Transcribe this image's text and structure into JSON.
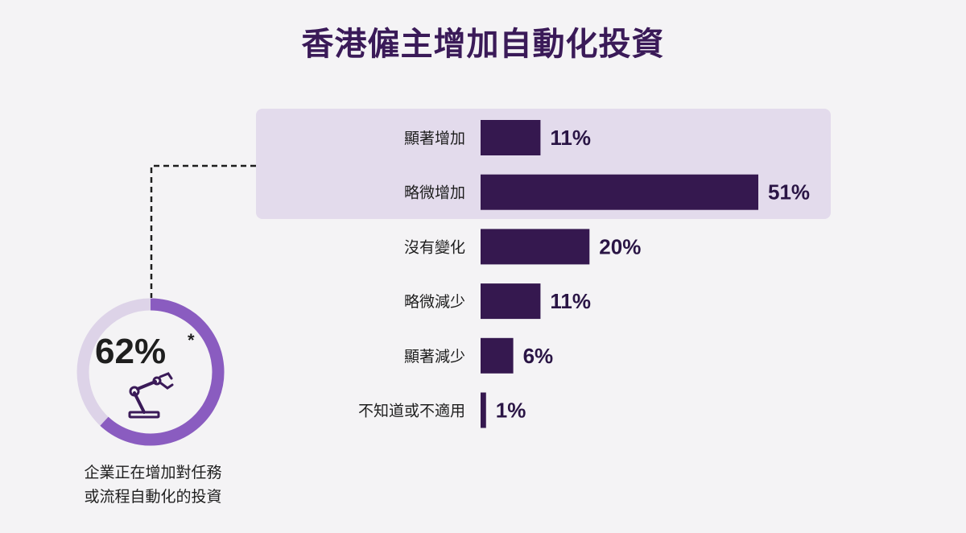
{
  "title": "香港僱主增加自動化投資",
  "colors": {
    "bar": "#35184f",
    "highlight": "#e3dbec",
    "ring_track": "#ddd3e8",
    "ring_fill": "#8a5cc0",
    "title": "#3a1a58"
  },
  "chart_data": {
    "type": "bar",
    "orientation": "horizontal",
    "categories": [
      "顯著增加",
      "略微增加",
      "沒有變化",
      "略微減少",
      "顯著減少",
      "不知道或不適用"
    ],
    "values": [
      11,
      51,
      20,
      11,
      6,
      1
    ],
    "value_labels": [
      "11%",
      "51%",
      "20%",
      "11%",
      "6%",
      "1%"
    ],
    "unit": "%",
    "highlighted_categories": [
      "顯著增加",
      "略微增加"
    ],
    "xlim": [
      0,
      51
    ],
    "grid": false
  },
  "callout": {
    "value": "62%",
    "fraction": 0.62,
    "note": "*",
    "icon": "robot-arm-icon",
    "caption_lines": [
      "企業正在增加對任務",
      "或流程自動化的投資"
    ]
  }
}
